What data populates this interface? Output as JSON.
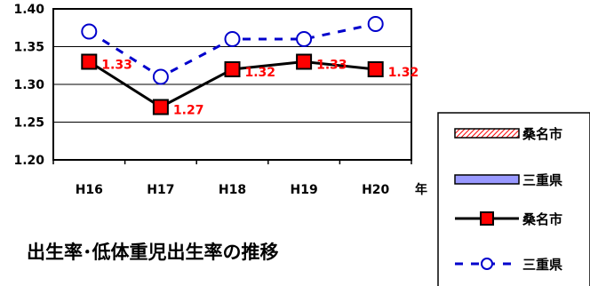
{
  "chart_data": {
    "type": "line",
    "title": "出生率･低体重児出生率の推移",
    "categories": [
      "H16",
      "H17",
      "H18",
      "H19",
      "H20"
    ],
    "x_unit": "年",
    "ylim": [
      1.2,
      1.4
    ],
    "yticks": [
      "1.20",
      "1.25",
      "1.30",
      "1.35",
      "1.40"
    ],
    "grid": true,
    "legend_position": "right",
    "series": [
      {
        "name": "桑名市",
        "values": [
          1.33,
          1.27,
          1.32,
          1.33,
          1.32
        ],
        "labels": [
          "1.33",
          "1.27",
          "1.32",
          "1.33",
          "1.32"
        ],
        "color": "#000000",
        "marker_color": "#ff0000"
      },
      {
        "name": "三重県",
        "values": [
          1.37,
          1.31,
          1.36,
          1.36,
          1.38
        ],
        "color": "#0000cc"
      }
    ],
    "legend": [
      {
        "name": "桑名市",
        "kind": "bar-hatched",
        "color": "#ff0000"
      },
      {
        "name": "三重県",
        "kind": "bar",
        "color": "#9999ff"
      },
      {
        "name": "桑名市",
        "kind": "line-square",
        "color": "#000000"
      },
      {
        "name": "三重県",
        "kind": "line-circle-dashed",
        "color": "#0000cc"
      }
    ]
  }
}
